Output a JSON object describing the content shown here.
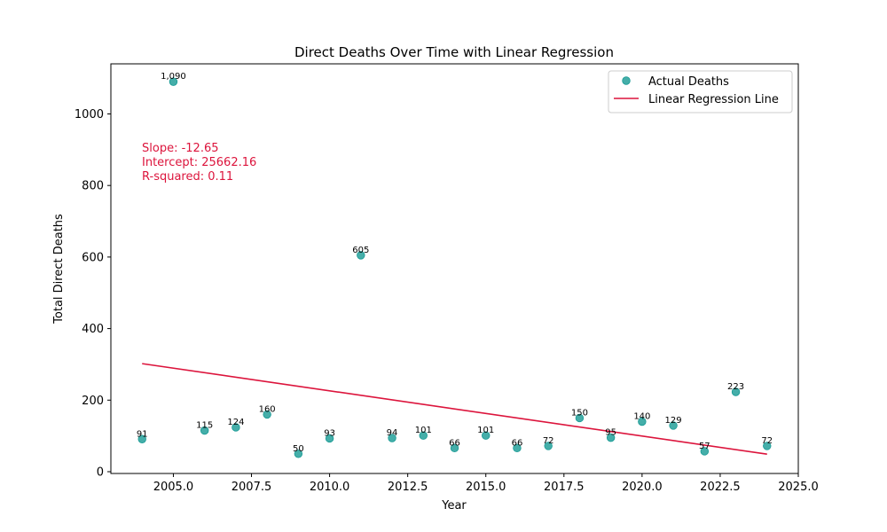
{
  "chart_data": {
    "type": "scatter",
    "title": "Direct Deaths Over Time with Linear Regression",
    "xlabel": "Year",
    "ylabel": "Total Direct Deaths",
    "xlim": [
      2003.0,
      2025.0
    ],
    "ylim": [
      -5,
      1140
    ],
    "xticks": [
      2005.0,
      2007.5,
      2010.0,
      2012.5,
      2015.0,
      2017.5,
      2020.0,
      2022.5,
      2025.0
    ],
    "xtick_labels": [
      "2005.0",
      "2007.5",
      "2010.0",
      "2012.5",
      "2015.0",
      "2017.5",
      "2020.0",
      "2022.5",
      "2025.0"
    ],
    "yticks": [
      0,
      200,
      400,
      600,
      800,
      1000
    ],
    "ytick_labels": [
      "0",
      "200",
      "400",
      "600",
      "800",
      "1000"
    ],
    "grid": false,
    "legend_position": "top-right",
    "series": [
      {
        "name": "Actual Deaths",
        "kind": "scatter",
        "color": "#169a94",
        "x": [
          2004,
          2005,
          2006,
          2007,
          2008,
          2009,
          2010,
          2011,
          2012,
          2013,
          2014,
          2015,
          2016,
          2017,
          2018,
          2019,
          2020,
          2021,
          2022,
          2023,
          2024
        ],
        "y": [
          91,
          1090,
          115,
          124,
          160,
          50,
          93,
          605,
          94,
          101,
          66,
          101,
          66,
          72,
          150,
          95,
          140,
          129,
          57,
          223,
          72
        ],
        "labels": [
          "91",
          "1,090",
          "115",
          "124",
          "160",
          "50",
          "93",
          "605",
          "94",
          "101",
          "66",
          "101",
          "66",
          "72",
          "150",
          "95",
          "140",
          "129",
          "57",
          "223",
          "72"
        ]
      },
      {
        "name": "Linear Regression Line",
        "kind": "line",
        "color": "#dc143c",
        "x": [
          2004,
          2024
        ],
        "y": [
          302,
          49
        ]
      }
    ],
    "annotation": {
      "color": "#dc143c",
      "lines": [
        "Slope: -12.65",
        "Intercept: 25662.16",
        "R-squared: 0.11"
      ]
    }
  }
}
